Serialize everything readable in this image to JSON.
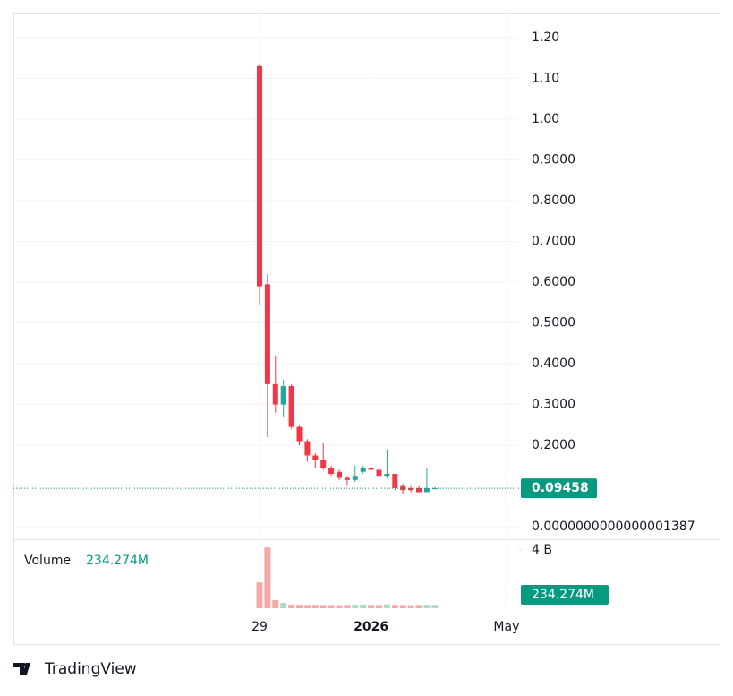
{
  "chart_data": {
    "type": "candlestick",
    "categories": [
      "29",
      null,
      null,
      null,
      null,
      null,
      null,
      null,
      null,
      null,
      null,
      null,
      null,
      null,
      "2026",
      null,
      null,
      null,
      null,
      null,
      null,
      null,
      null,
      null,
      null,
      null,
      null,
      null,
      null,
      null,
      null,
      "May"
    ],
    "open": [
      1.13,
      0.595,
      0.35,
      0.3,
      0.345,
      0.245,
      0.21,
      0.175,
      0.165,
      0.145,
      0.135,
      0.12,
      0.115,
      0.135,
      0.145,
      0.14,
      0.125,
      0.13,
      0.1,
      0.095,
      0.095,
      0.085,
      0.094,
      null,
      null,
      null,
      null,
      null,
      null,
      null,
      null,
      null
    ],
    "high": [
      1.135,
      0.62,
      0.42,
      0.36,
      0.35,
      0.25,
      0.215,
      0.18,
      0.205,
      0.15,
      0.14,
      0.125,
      0.15,
      0.15,
      0.15,
      0.145,
      0.19,
      0.13,
      0.105,
      0.1,
      0.1,
      0.145,
      0.097,
      null,
      null,
      null,
      null,
      null,
      null,
      null,
      null,
      null
    ],
    "low": [
      0.545,
      0.22,
      0.28,
      0.27,
      0.24,
      0.2,
      0.16,
      0.145,
      0.14,
      0.125,
      0.115,
      0.1,
      0.11,
      0.13,
      0.135,
      0.12,
      0.12,
      0.09,
      0.08,
      0.085,
      0.085,
      0.085,
      0.092,
      null,
      null,
      null,
      null,
      null,
      null,
      null,
      null,
      null
    ],
    "close": [
      0.59,
      0.35,
      0.3,
      0.345,
      0.245,
      0.21,
      0.175,
      0.165,
      0.145,
      0.13,
      0.12,
      0.115,
      0.125,
      0.145,
      0.14,
      0.125,
      0.13,
      0.095,
      0.09,
      0.09,
      0.085,
      0.095,
      0.09458,
      null,
      null,
      null,
      null,
      null,
      null,
      null,
      null,
      null
    ],
    "up_color": "#26a69a",
    "down_color": "#f23645",
    "ylim": [
      -0.026,
      1.259
    ],
    "yticks": [
      {
        "value": 1.2,
        "label": "1.20"
      },
      {
        "value": 1.1,
        "label": "1.10"
      },
      {
        "value": 1.0,
        "label": "1.00"
      },
      {
        "value": 0.9,
        "label": "0.9000"
      },
      {
        "value": 0.8,
        "label": "0.8000"
      },
      {
        "value": 0.7,
        "label": "0.7000"
      },
      {
        "value": 0.6,
        "label": "0.6000"
      },
      {
        "value": 0.5,
        "label": "0.5000"
      },
      {
        "value": 0.4,
        "label": "0.4000"
      },
      {
        "value": 0.3,
        "label": "0.3000"
      },
      {
        "value": 0.2,
        "label": "0.2000"
      },
      {
        "value": 1.387e-16,
        "label": "0.0000000000000001387"
      }
    ],
    "grid": true,
    "volume": {
      "name": "Volume",
      "values": [
        1780000000,
        4180000000,
        550000000,
        370000000,
        250000000,
        240000000,
        230000000,
        230000000,
        220000000,
        220000000,
        210000000,
        230000000,
        240000000,
        250000000,
        230000000,
        220000000,
        260000000,
        230000000,
        220000000,
        210000000,
        230000000,
        240000000,
        234274000,
        null,
        null,
        null,
        null,
        null,
        null,
        null,
        null,
        null
      ],
      "value_labels": [
        null,
        null,
        null,
        null,
        null,
        null,
        null,
        null,
        null,
        null,
        null,
        null,
        null,
        null,
        null,
        null,
        null,
        null,
        null,
        null,
        null,
        null,
        "234.274M",
        null,
        null,
        null,
        null,
        null,
        null,
        null,
        null,
        null
      ],
      "up_color": "#a9dcc3",
      "down_color": "#f7a9a7"
    },
    "vlim": [
      0,
      4680000000
    ],
    "vticks": [
      {
        "value": 4000000000,
        "label": "4 B"
      }
    ]
  },
  "brand": "TradingView"
}
